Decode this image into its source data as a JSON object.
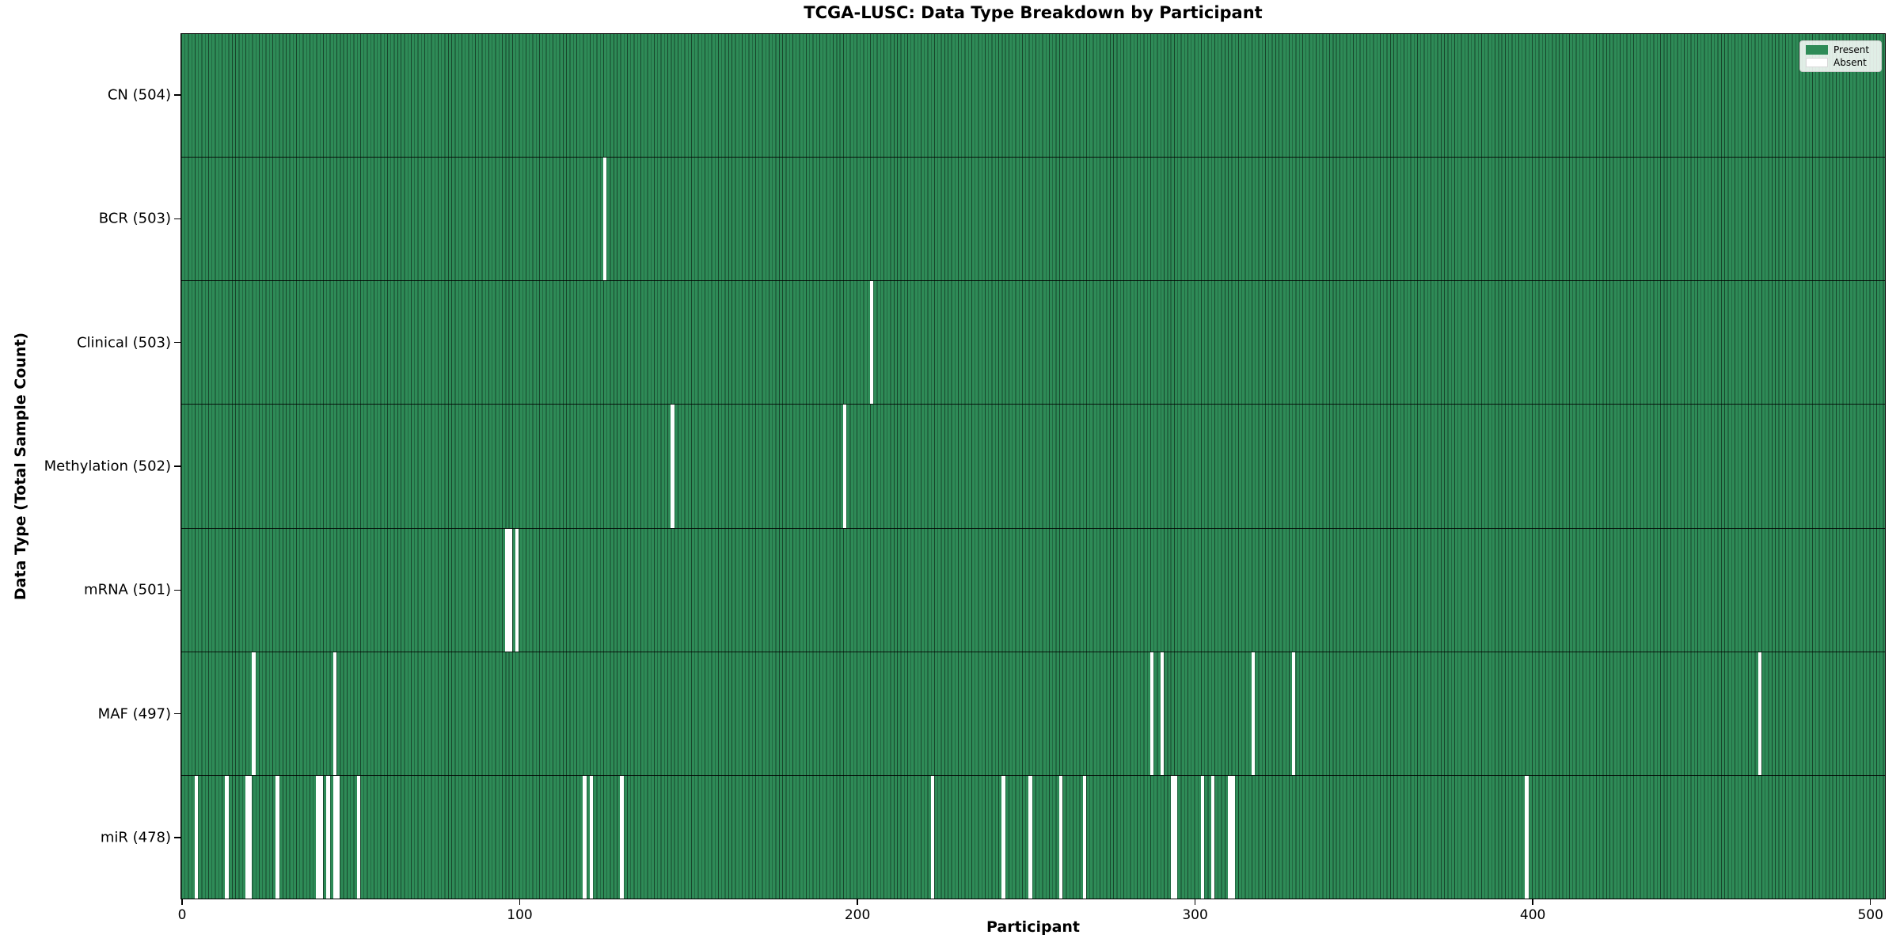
{
  "figure": {
    "title": "TCGA-LUSC: Data Type Breakdown by Participant",
    "xlabel": "Participant",
    "ylabel": "Data Type (Total Sample Count)"
  },
  "legend": {
    "items": [
      {
        "label": "Present",
        "color": "#2e8b57"
      },
      {
        "label": "Absent",
        "color": "#ffffff"
      }
    ],
    "position": "upper right"
  },
  "chart_data": {
    "type": "heatmap",
    "title": "TCGA-LUSC: Data Type Breakdown by Participant",
    "xlabel": "Participant",
    "ylabel": "Data Type (Total Sample Count)",
    "x_ticks": [
      0,
      100,
      200,
      300,
      400,
      500
    ],
    "xlim": [
      -0.5,
      504.5
    ],
    "n_participants": 504,
    "grid": false,
    "legend_entries": [
      "Present",
      "Absent"
    ],
    "legend_position": "upper right",
    "colors": {
      "present": "#2e8b57",
      "absent": "#ffffff",
      "bar_edge": "rgba(0,0,0,0.5)"
    },
    "rows": [
      {
        "label": "CN (504)",
        "data_type": "CN",
        "total_samples": 504,
        "absent_participants": []
      },
      {
        "label": "BCR (503)",
        "data_type": "BCR",
        "total_samples": 503,
        "absent_participants": [
          125
        ]
      },
      {
        "label": "Clinical (503)",
        "data_type": "Clinical",
        "total_samples": 503,
        "absent_participants": [
          204
        ]
      },
      {
        "label": "Methylation (502)",
        "data_type": "Methylation",
        "total_samples": 502,
        "absent_participants": [
          145,
          196
        ]
      },
      {
        "label": "mRNA (501)",
        "data_type": "mRNA",
        "total_samples": 501,
        "absent_participants": [
          96,
          97,
          99
        ]
      },
      {
        "label": "MAF (497)",
        "data_type": "MAF",
        "total_samples": 497,
        "absent_participants": [
          21,
          45,
          287,
          290,
          317,
          329,
          467
        ]
      },
      {
        "label": "miR (478)",
        "data_type": "miR",
        "total_samples": 478,
        "absent_participants": [
          4,
          13,
          19,
          20,
          28,
          40,
          41,
          43,
          45,
          46,
          52,
          119,
          121,
          130,
          222,
          243,
          251,
          260,
          267,
          293,
          294,
          302,
          305,
          310,
          311,
          398
        ]
      }
    ]
  }
}
